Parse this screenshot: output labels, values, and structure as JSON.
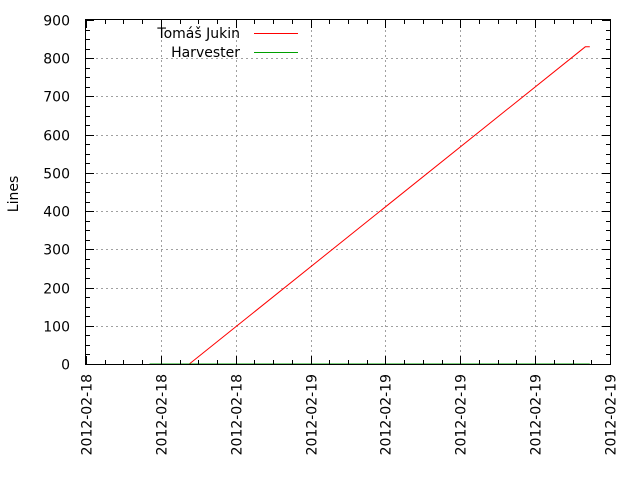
{
  "chart_data": {
    "type": "line",
    "ylabel": "Lines",
    "xlabel": "",
    "grid": true,
    "legend_position": "top-left",
    "ylim": [
      0,
      900
    ],
    "y_ticks": [
      "0",
      "100",
      "200",
      "300",
      "400",
      "500",
      "600",
      "700",
      "800",
      "900"
    ],
    "x_ticks": [
      "2012-02-18",
      "2012-02-18",
      "2012-02-18",
      "2012-02-19",
      "2012-02-19",
      "2012-02-19",
      "2012-02-19",
      "2012-02-19"
    ],
    "x_tick_positions": [
      0,
      1,
      2,
      3,
      4,
      5,
      6,
      7
    ],
    "xlim": [
      0,
      7
    ],
    "series": [
      {
        "name": "Tomáš Jukin",
        "color": "#ff0000",
        "points": [
          [
            1.38,
            0
          ],
          [
            6.67,
            830
          ],
          [
            6.73,
            830
          ]
        ]
      },
      {
        "name": "Harvester",
        "color": "#00a000",
        "points": [
          [
            0.85,
            0
          ],
          [
            6.73,
            0
          ]
        ]
      }
    ]
  }
}
